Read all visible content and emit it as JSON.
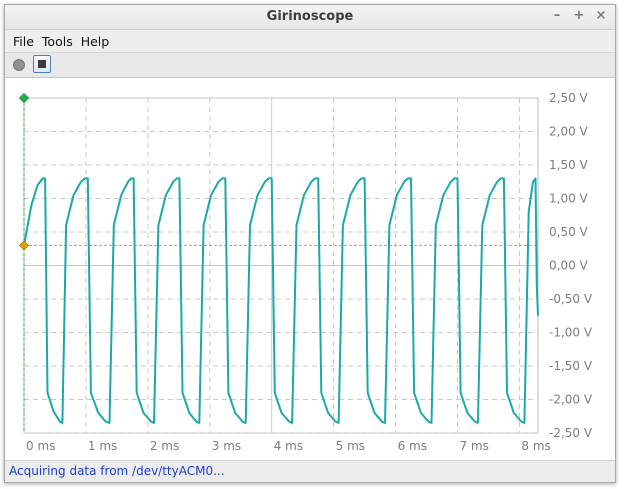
{
  "window": {
    "title": "Girinoscope"
  },
  "window_controls": {
    "minimize": "–",
    "maximize": "+",
    "close": "×"
  },
  "menu": {
    "items": [
      "File",
      "Tools",
      "Help"
    ]
  },
  "toolbar": {
    "record_icon": "record-icon",
    "stop_icon": "stop-icon"
  },
  "status": {
    "message": "Acquiring data from /dev/ttyACM0..."
  },
  "colors": {
    "signal": "#1aa9a8",
    "grid": "#c8c8c8",
    "trigger": "#d7a300",
    "marker": "#22b14c",
    "axis_text": "#7d7d7d"
  },
  "chart_data": {
    "type": "line",
    "x_unit": "ms",
    "y_unit": "V",
    "xlim": [
      0,
      8.3
    ],
    "ylim": [
      -2.5,
      2.5
    ],
    "x_ticks": [
      "0 ms",
      "1 ms",
      "2 ms",
      "3 ms",
      "4 ms",
      "5 ms",
      "6 ms",
      "7 ms",
      "8 ms"
    ],
    "x_tick_values": [
      0,
      1,
      2,
      3,
      4,
      5,
      6,
      7,
      8
    ],
    "y_ticks": [
      "2,50 V",
      "2,00 V",
      "1,50 V",
      "1,00 V",
      "0,50 V",
      "0,00 V",
      "-0,50 V",
      "-1,00 V",
      "-1,50 V",
      "-2,00 V",
      "-2,50 V"
    ],
    "y_tick_values": [
      2.5,
      2.0,
      1.5,
      1.0,
      0.5,
      0.0,
      -0.5,
      -1.0,
      -1.5,
      -2.0,
      -2.5
    ],
    "trigger_level": 0.3,
    "series": [
      {
        "values": [
          {
            "x": 0.0,
            "y": 0.3
          },
          {
            "x": 0.12,
            "y": 0.9
          },
          {
            "x": 0.22,
            "y": 1.2
          },
          {
            "x": 0.3,
            "y": 1.3
          },
          {
            "x": 0.34,
            "y": 1.3
          },
          {
            "x": 0.38,
            "y": -1.9
          },
          {
            "x": 0.48,
            "y": -2.18
          },
          {
            "x": 0.58,
            "y": -2.33
          },
          {
            "x": 0.62,
            "y": -2.35
          },
          {
            "x": 0.68,
            "y": 0.6
          },
          {
            "x": 0.8,
            "y": 1.05
          },
          {
            "x": 0.92,
            "y": 1.25
          },
          {
            "x": 0.98,
            "y": 1.3
          },
          {
            "x": 1.03,
            "y": 1.3
          },
          {
            "x": 1.08,
            "y": -1.9
          },
          {
            "x": 1.2,
            "y": -2.2
          },
          {
            "x": 1.32,
            "y": -2.33
          },
          {
            "x": 1.38,
            "y": -2.35
          },
          {
            "x": 1.45,
            "y": 0.6
          },
          {
            "x": 1.57,
            "y": 1.05
          },
          {
            "x": 1.68,
            "y": 1.25
          },
          {
            "x": 1.73,
            "y": 1.3
          },
          {
            "x": 1.77,
            "y": 1.3
          },
          {
            "x": 1.82,
            "y": -1.9
          },
          {
            "x": 1.93,
            "y": -2.2
          },
          {
            "x": 2.05,
            "y": -2.33
          },
          {
            "x": 2.1,
            "y": -2.35
          },
          {
            "x": 2.17,
            "y": 0.6
          },
          {
            "x": 2.29,
            "y": 1.05
          },
          {
            "x": 2.41,
            "y": 1.25
          },
          {
            "x": 2.47,
            "y": 1.3
          },
          {
            "x": 2.51,
            "y": 1.3
          },
          {
            "x": 2.56,
            "y": -1.9
          },
          {
            "x": 2.67,
            "y": -2.2
          },
          {
            "x": 2.78,
            "y": -2.33
          },
          {
            "x": 2.83,
            "y": -2.35
          },
          {
            "x": 2.9,
            "y": 0.6
          },
          {
            "x": 3.02,
            "y": 1.05
          },
          {
            "x": 3.14,
            "y": 1.25
          },
          {
            "x": 3.2,
            "y": 1.3
          },
          {
            "x": 3.25,
            "y": 1.3
          },
          {
            "x": 3.3,
            "y": -1.9
          },
          {
            "x": 3.41,
            "y": -2.2
          },
          {
            "x": 3.53,
            "y": -2.33
          },
          {
            "x": 3.58,
            "y": -2.35
          },
          {
            "x": 3.65,
            "y": 0.6
          },
          {
            "x": 3.77,
            "y": 1.05
          },
          {
            "x": 3.89,
            "y": 1.25
          },
          {
            "x": 3.95,
            "y": 1.3
          },
          {
            "x": 4.0,
            "y": 1.3
          },
          {
            "x": 4.05,
            "y": -1.9
          },
          {
            "x": 4.16,
            "y": -2.2
          },
          {
            "x": 4.28,
            "y": -2.33
          },
          {
            "x": 4.33,
            "y": -2.35
          },
          {
            "x": 4.4,
            "y": 0.6
          },
          {
            "x": 4.52,
            "y": 1.05
          },
          {
            "x": 4.64,
            "y": 1.25
          },
          {
            "x": 4.7,
            "y": 1.3
          },
          {
            "x": 4.75,
            "y": 1.3
          },
          {
            "x": 4.8,
            "y": -1.9
          },
          {
            "x": 4.91,
            "y": -2.2
          },
          {
            "x": 5.03,
            "y": -2.33
          },
          {
            "x": 5.08,
            "y": -2.35
          },
          {
            "x": 5.15,
            "y": 0.6
          },
          {
            "x": 5.27,
            "y": 1.05
          },
          {
            "x": 5.39,
            "y": 1.25
          },
          {
            "x": 5.45,
            "y": 1.3
          },
          {
            "x": 5.5,
            "y": 1.3
          },
          {
            "x": 5.55,
            "y": -1.9
          },
          {
            "x": 5.66,
            "y": -2.2
          },
          {
            "x": 5.78,
            "y": -2.33
          },
          {
            "x": 5.83,
            "y": -2.35
          },
          {
            "x": 5.9,
            "y": 0.6
          },
          {
            "x": 6.02,
            "y": 1.05
          },
          {
            "x": 6.14,
            "y": 1.25
          },
          {
            "x": 6.2,
            "y": 1.3
          },
          {
            "x": 6.25,
            "y": 1.3
          },
          {
            "x": 6.3,
            "y": -1.9
          },
          {
            "x": 6.41,
            "y": -2.2
          },
          {
            "x": 6.53,
            "y": -2.33
          },
          {
            "x": 6.58,
            "y": -2.35
          },
          {
            "x": 6.65,
            "y": 0.6
          },
          {
            "x": 6.77,
            "y": 1.05
          },
          {
            "x": 6.89,
            "y": 1.25
          },
          {
            "x": 6.95,
            "y": 1.3
          },
          {
            "x": 7.0,
            "y": 1.3
          },
          {
            "x": 7.05,
            "y": -1.9
          },
          {
            "x": 7.16,
            "y": -2.2
          },
          {
            "x": 7.28,
            "y": -2.33
          },
          {
            "x": 7.33,
            "y": -2.35
          },
          {
            "x": 7.4,
            "y": 0.6
          },
          {
            "x": 7.52,
            "y": 1.05
          },
          {
            "x": 7.64,
            "y": 1.25
          },
          {
            "x": 7.7,
            "y": 1.3
          },
          {
            "x": 7.75,
            "y": 1.3
          },
          {
            "x": 7.8,
            "y": -1.9
          },
          {
            "x": 7.91,
            "y": -2.2
          },
          {
            "x": 8.03,
            "y": -2.33
          },
          {
            "x": 8.08,
            "y": -2.35
          },
          {
            "x": 8.15,
            "y": 0.8
          },
          {
            "x": 8.22,
            "y": 1.25
          },
          {
            "x": 8.26,
            "y": 1.3
          },
          {
            "x": 8.28,
            "y": -0.3
          },
          {
            "x": 8.3,
            "y": -0.75
          }
        ]
      }
    ]
  }
}
